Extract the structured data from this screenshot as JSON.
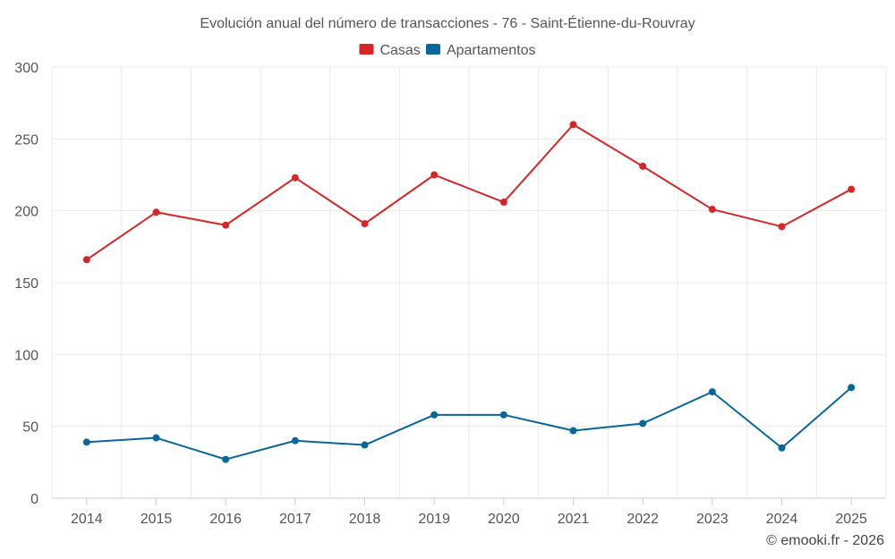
{
  "chart_data": {
    "type": "line",
    "title": "Evolución anual del número de transacciones - 76 - Saint-Étienne-du-Rouvray",
    "categories": [
      "2014",
      "2015",
      "2016",
      "2017",
      "2018",
      "2019",
      "2020",
      "2021",
      "2022",
      "2023",
      "2024",
      "2025"
    ],
    "series": [
      {
        "name": "Casas",
        "color": "#d62728",
        "values": [
          166,
          199,
          190,
          223,
          191,
          225,
          206,
          260,
          231,
          201,
          189,
          215
        ]
      },
      {
        "name": "Apartamentos",
        "color": "#08669a",
        "values": [
          39,
          42,
          27,
          40,
          37,
          58,
          58,
          47,
          52,
          74,
          35,
          77
        ]
      }
    ],
    "ylim": [
      0,
      300
    ],
    "yticks": [
      0,
      50,
      100,
      150,
      200,
      250,
      300
    ],
    "xlabel": "",
    "ylabel": "",
    "grid": true,
    "legend": "top-center"
  },
  "credit": "© emooki.fr - 2026"
}
